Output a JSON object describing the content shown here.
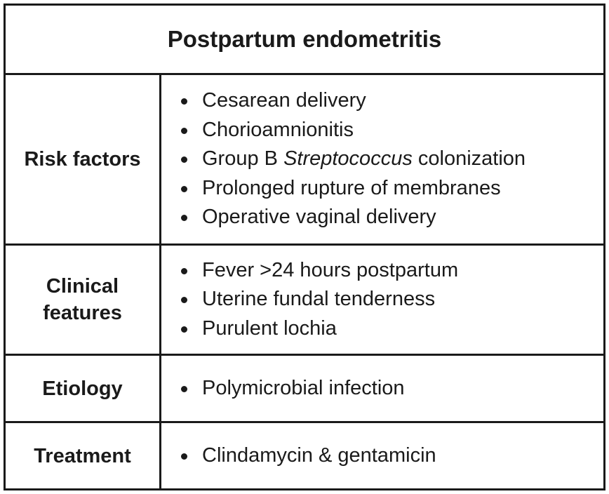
{
  "title": "Postpartum endometritis",
  "rows": [
    {
      "label": "Risk factors",
      "items": [
        {
          "text": "Cesarean delivery"
        },
        {
          "text": "Chorioamnionitis"
        },
        {
          "pre": "Group B ",
          "italic": "Streptococcus",
          "post": " colonization"
        },
        {
          "text": "Prolonged rupture of membranes"
        },
        {
          "text": "Operative vaginal delivery"
        }
      ]
    },
    {
      "label": "Clinical features",
      "items": [
        {
          "text": "Fever >24 hours postpartum"
        },
        {
          "text": "Uterine fundal tenderness"
        },
        {
          "text": "Purulent lochia"
        }
      ]
    },
    {
      "label": "Etiology",
      "items": [
        {
          "text": "Polymicrobial infection"
        }
      ]
    },
    {
      "label": "Treatment",
      "items": [
        {
          "text": "Clindamycin & gentamicin"
        }
      ]
    }
  ]
}
